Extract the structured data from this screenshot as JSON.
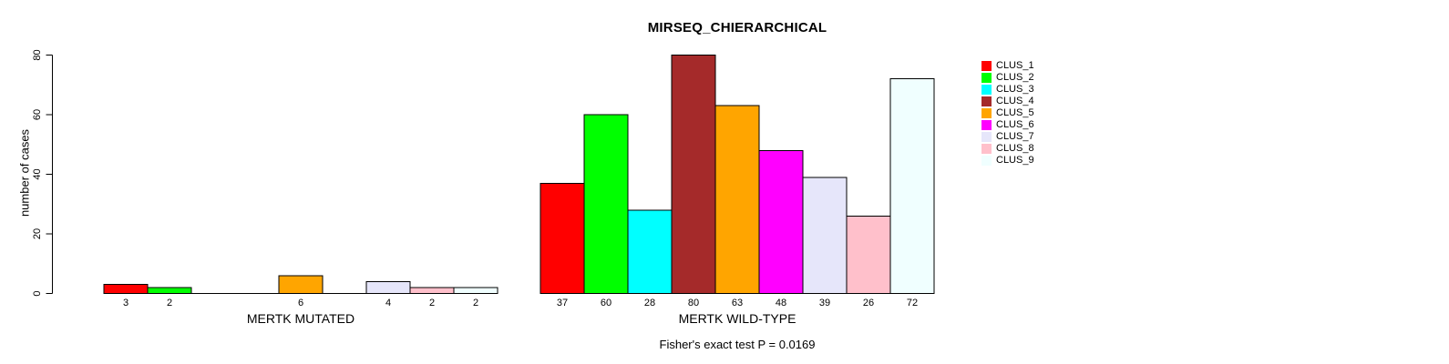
{
  "chart_data": {
    "type": "bar",
    "title": "MIRSEQ_CHIERARCHICAL",
    "ylabel": "number of cases",
    "annotation": "Fisher's exact test P = 0.0169",
    "ylim": [
      0,
      80
    ],
    "yticks": [
      0,
      20,
      40,
      60,
      80
    ],
    "grid": false,
    "legend_position": "right",
    "clusters": [
      "CLUS_1",
      "CLUS_2",
      "CLUS_3",
      "CLUS_4",
      "CLUS_5",
      "CLUS_6",
      "CLUS_7",
      "CLUS_8",
      "CLUS_9"
    ],
    "colors": [
      "#FF0000",
      "#00FF00",
      "#00FFFF",
      "#A52A2A",
      "#FFA500",
      "#FF00FF",
      "#E6E6FA",
      "#FFC0CB",
      "#F0FFFF"
    ],
    "bar_border_color": "#000000",
    "groups": [
      {
        "label": "MERTK MUTATED",
        "values": [
          3,
          2,
          0,
          0,
          6,
          0,
          4,
          2,
          2
        ]
      },
      {
        "label": "MERTK WILD-TYPE",
        "values": [
          37,
          60,
          28,
          80,
          63,
          48,
          39,
          26,
          72
        ]
      }
    ]
  }
}
